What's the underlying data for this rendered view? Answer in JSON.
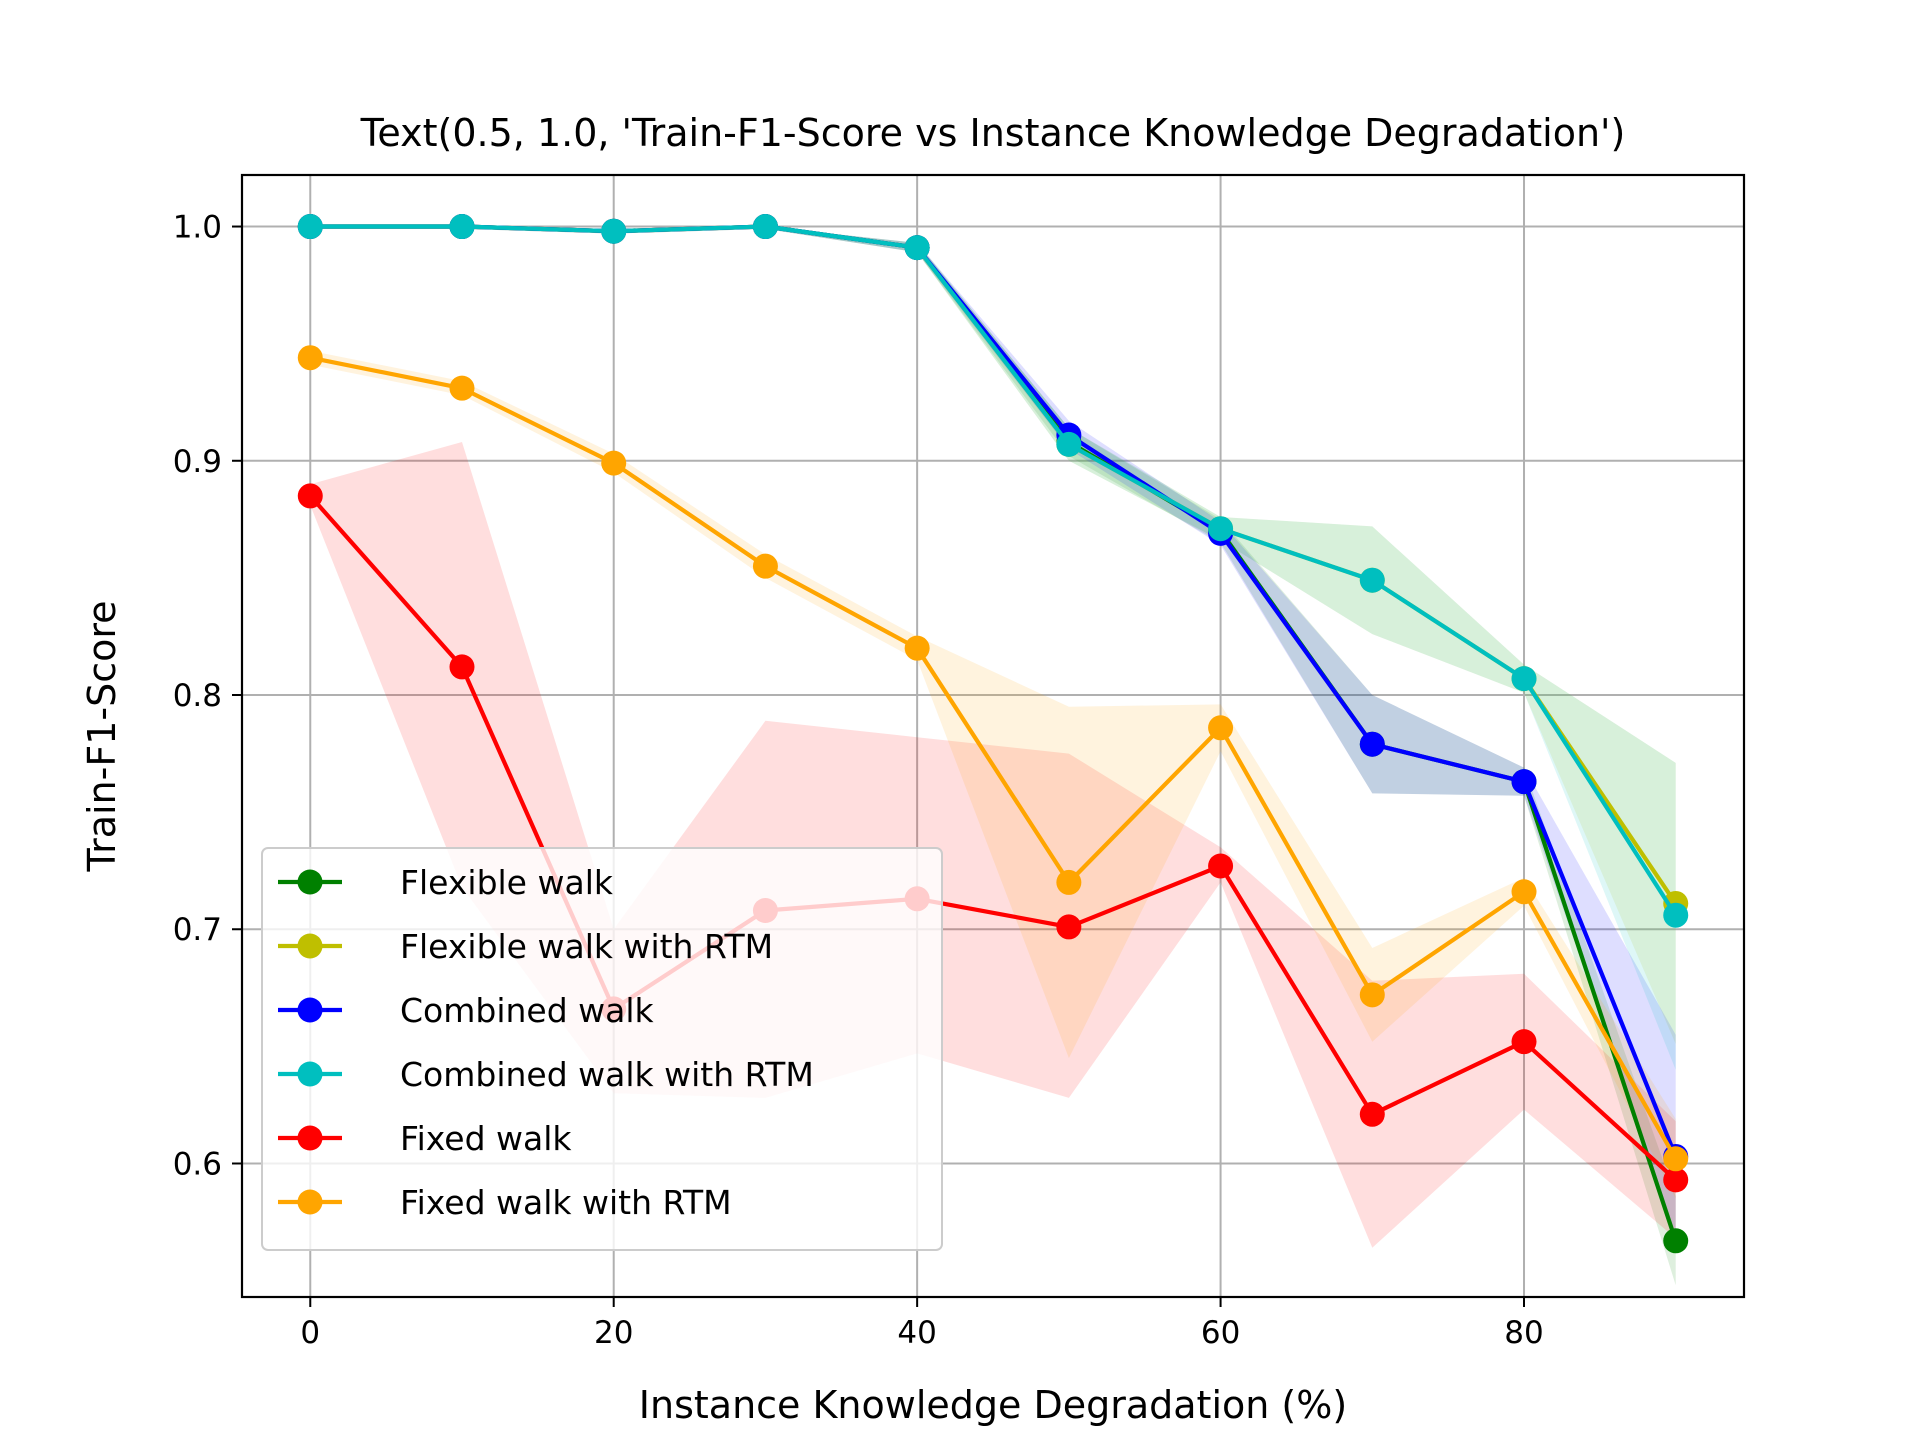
{
  "chart_data": {
    "type": "line",
    "title": "Text(0.5, 1.0, 'Train-F1-Score vs Instance Knowledge Degradation')",
    "xlabel": "Instance Knowledge Degradation (%)",
    "ylabel": "Train-F1-Score",
    "xlim": [
      -4.5,
      94.5
    ],
    "ylim": [
      0.543,
      1.022
    ],
    "x": [
      0,
      10,
      20,
      30,
      40,
      50,
      60,
      70,
      80,
      90
    ],
    "x_ticks": [
      0,
      20,
      40,
      60,
      80
    ],
    "x_tick_labels": [
      "0",
      "20",
      "40",
      "60",
      "80"
    ],
    "y_ticks": [
      0.6,
      0.7,
      0.8,
      0.9,
      1.0
    ],
    "y_tick_labels": [
      "0.6",
      "0.7",
      "0.8",
      "0.9",
      "1.0"
    ],
    "grid": true,
    "legend_position": "lower-left",
    "series": [
      {
        "name": "Flexible walk",
        "color": "#008000",
        "values": [
          1.0,
          1.0,
          0.998,
          1.0,
          0.991,
          0.908,
          0.87,
          0.779,
          0.763,
          0.567
        ],
        "lower": [
          0.999,
          0.999,
          0.997,
          0.999,
          0.989,
          0.902,
          0.865,
          0.758,
          0.757,
          0.548
        ],
        "upper": [
          1.0,
          1.0,
          0.999,
          1.0,
          0.993,
          0.914,
          0.875,
          0.8,
          0.769,
          0.586
        ]
      },
      {
        "name": "Flexible walk with RTM",
        "color": "#bfbf00",
        "values": [
          1.0,
          1.0,
          0.998,
          1.0,
          0.991,
          0.907,
          0.871,
          0.849,
          0.807,
          0.711
        ],
        "lower": [
          0.999,
          0.999,
          0.997,
          0.999,
          0.989,
          0.9,
          0.866,
          0.826,
          0.801,
          0.651
        ],
        "upper": [
          1.0,
          1.0,
          0.999,
          1.0,
          0.993,
          0.914,
          0.876,
          0.872,
          0.813,
          0.771
        ]
      },
      {
        "name": "Combined walk",
        "color": "#0000ff",
        "values": [
          1.0,
          1.0,
          0.998,
          1.0,
          0.991,
          0.911,
          0.869,
          0.779,
          0.763,
          0.603
        ],
        "lower": [
          0.999,
          0.999,
          0.997,
          0.999,
          0.989,
          0.905,
          0.864,
          0.758,
          0.757,
          0.57
        ],
        "upper": [
          1.0,
          1.0,
          0.999,
          1.0,
          0.993,
          0.917,
          0.874,
          0.8,
          0.769,
          0.655
        ]
      },
      {
        "name": "Combined walk with RTM",
        "color": "#00bfbf",
        "values": [
          1.0,
          1.0,
          0.998,
          1.0,
          0.991,
          0.907,
          0.871,
          0.849,
          0.807,
          0.706
        ],
        "lower": [
          0.999,
          0.999,
          0.997,
          0.999,
          0.989,
          0.9,
          0.866,
          0.826,
          0.801,
          0.64
        ],
        "upper": [
          1.0,
          1.0,
          0.999,
          1.0,
          0.993,
          0.914,
          0.876,
          0.872,
          0.813,
          0.771
        ]
      },
      {
        "name": "Fixed walk",
        "color": "#ff0000",
        "values": [
          0.885,
          0.812,
          0.666,
          0.708,
          0.713,
          0.701,
          0.727,
          0.621,
          0.652,
          0.593
        ],
        "lower": [
          0.881,
          0.718,
          0.63,
          0.628,
          0.647,
          0.628,
          0.72,
          0.564,
          0.623,
          0.568
        ],
        "upper": [
          0.89,
          0.908,
          0.7,
          0.789,
          0.782,
          0.775,
          0.735,
          0.678,
          0.681,
          0.618
        ]
      },
      {
        "name": "Fixed walk with RTM",
        "color": "#ffa500",
        "values": [
          0.944,
          0.931,
          0.899,
          0.855,
          0.82,
          0.72,
          0.786,
          0.672,
          0.716,
          0.602
        ],
        "lower": [
          0.941,
          0.928,
          0.895,
          0.85,
          0.815,
          0.645,
          0.776,
          0.652,
          0.71,
          0.585
        ],
        "upper": [
          0.947,
          0.934,
          0.903,
          0.86,
          0.825,
          0.795,
          0.796,
          0.692,
          0.722,
          0.619
        ]
      }
    ]
  }
}
